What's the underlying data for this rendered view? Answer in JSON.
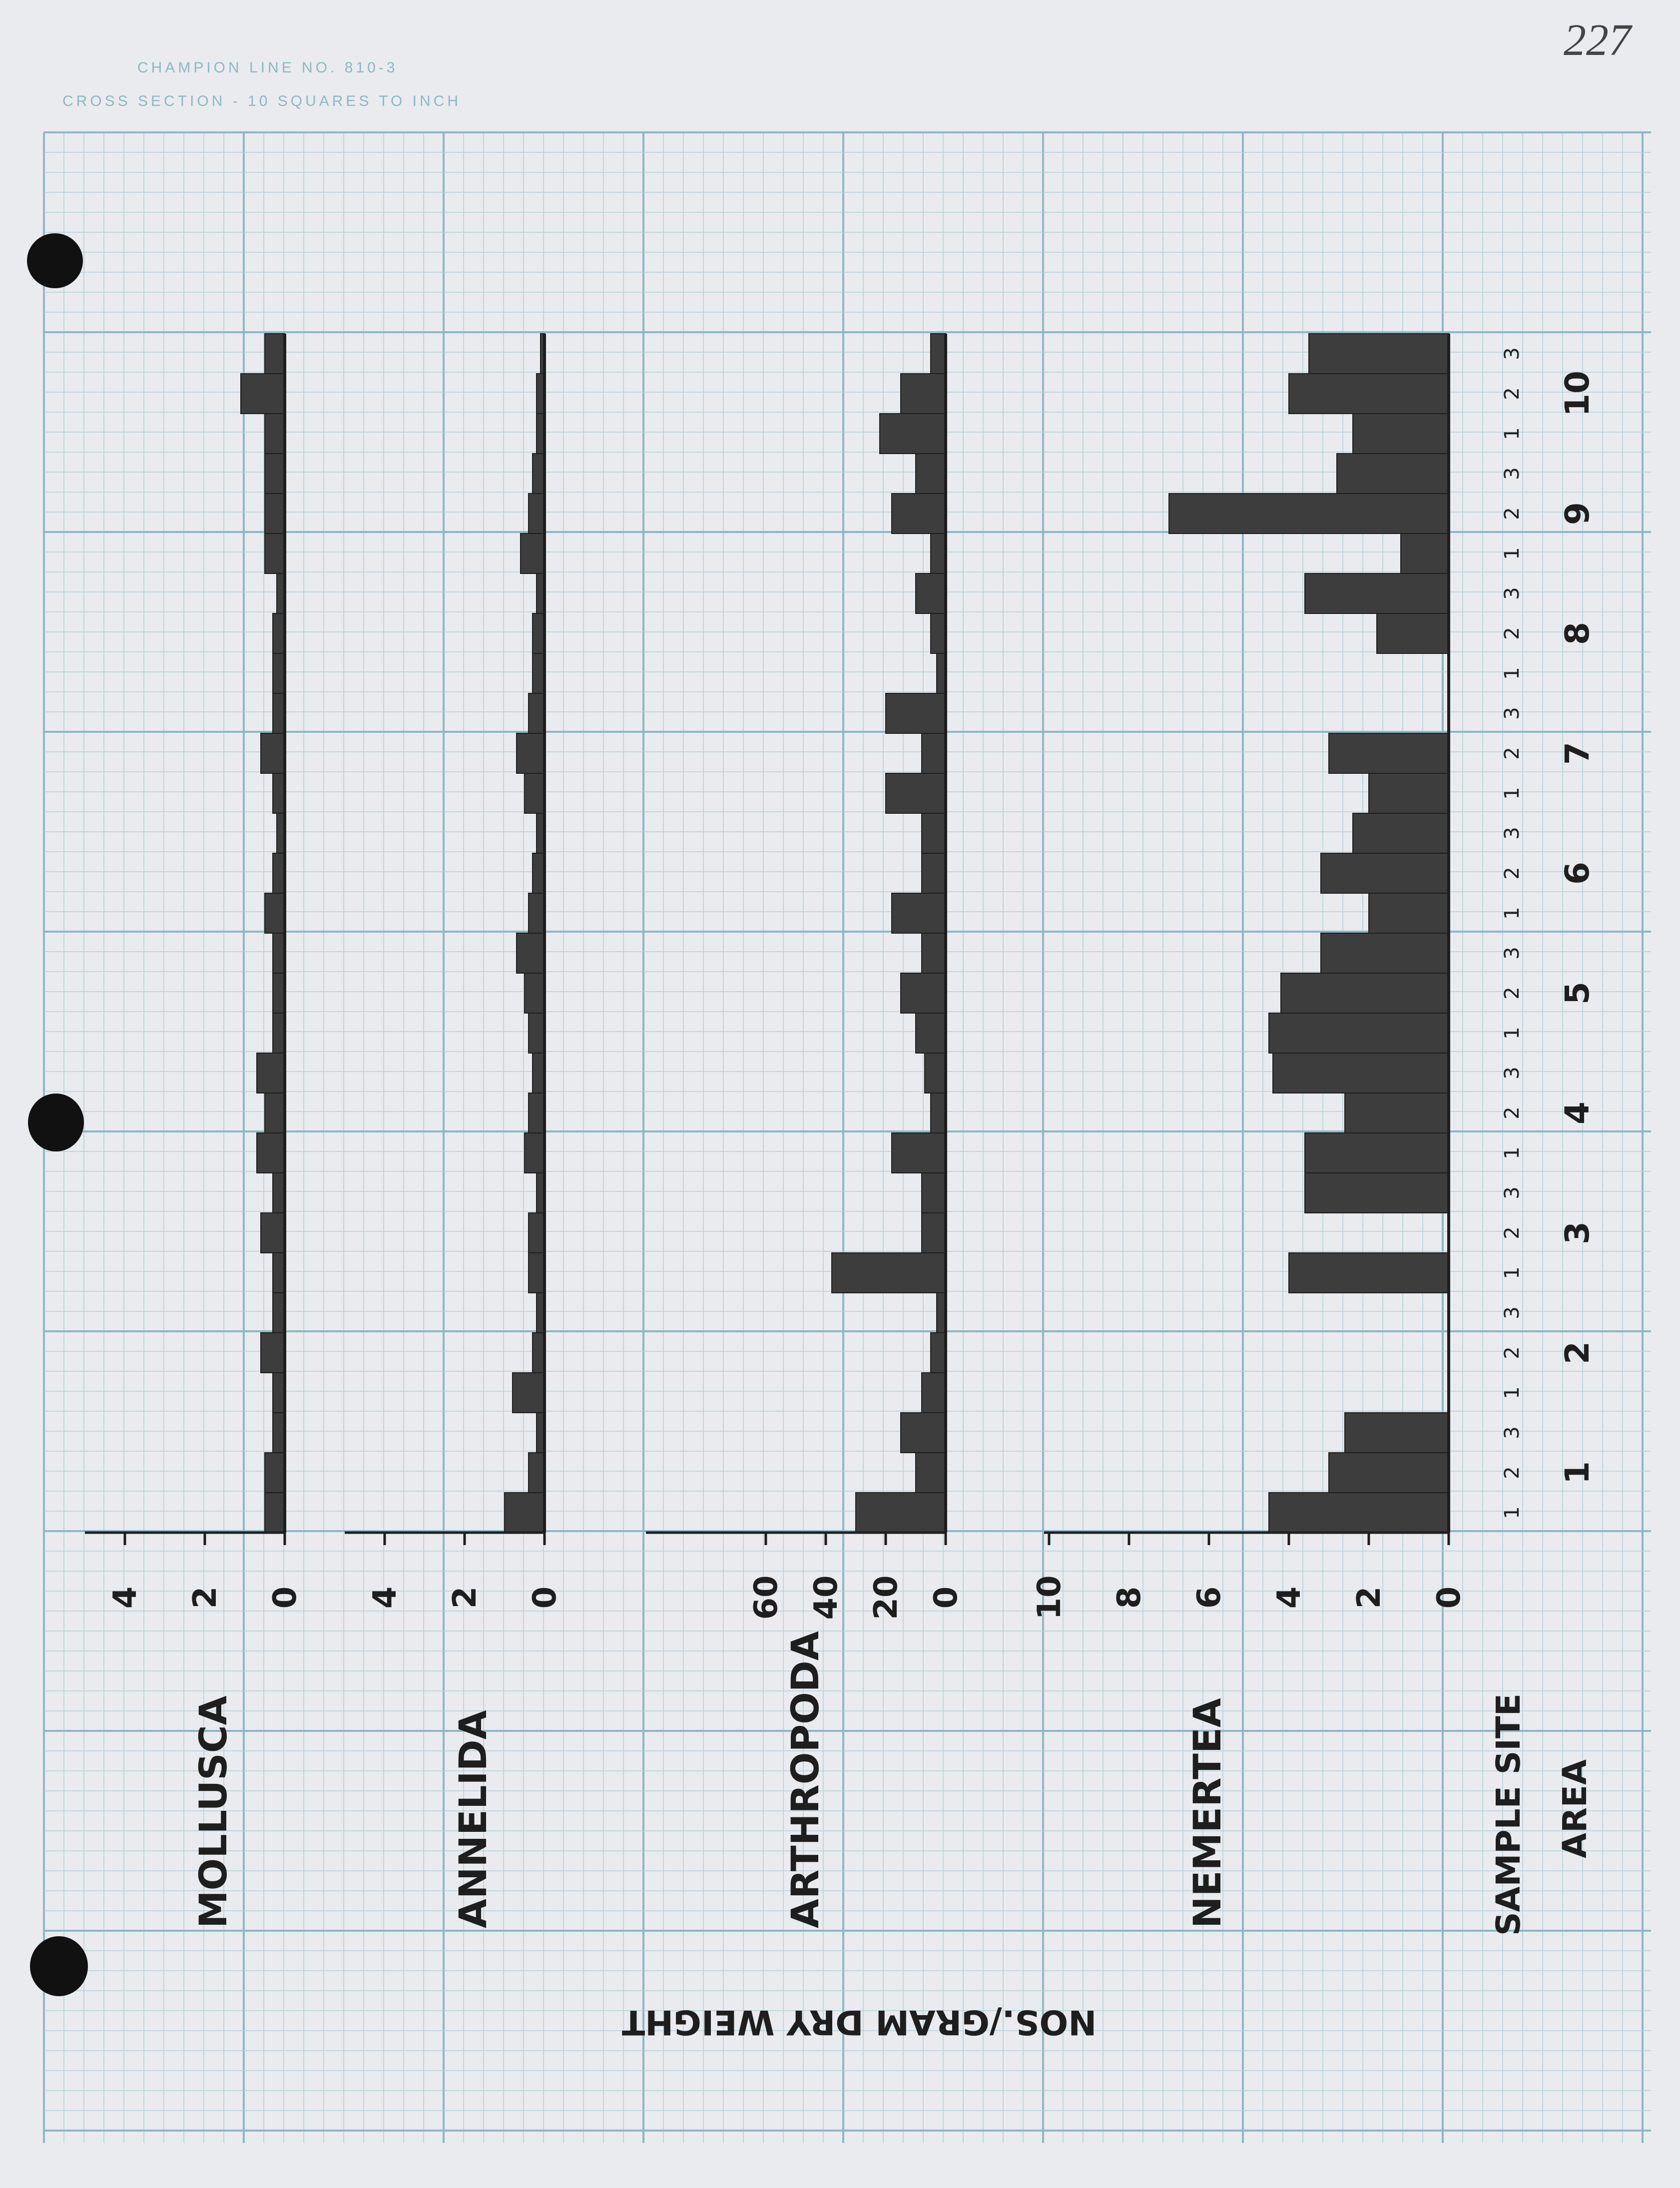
{
  "page": {
    "paper_header_line1": "CHAMPION LINE NO. 810-3",
    "paper_header_line2": "CROSS SECTION - 10 SQUARES TO INCH",
    "page_number": "227"
  },
  "colors": {
    "paper": "#e9ebee",
    "grid_minor": "#b7d0d8",
    "grid_major": "#8fb7c4",
    "ink": "#1e1e1e",
    "bar_fill": "#3d3d3d"
  },
  "chart_data": {
    "type": "bar",
    "orientation": "rotated 90 degrees",
    "ylabel": "NOS./GRAM DRY WEIGHT",
    "xlabel_rows": [
      "SAMPLE SITE",
      "AREA"
    ],
    "x_areas": [
      "1",
      "2",
      "3",
      "4",
      "5",
      "6",
      "7",
      "8",
      "9",
      "10"
    ],
    "x_sites": [
      "1",
      "2",
      "3",
      "1",
      "2",
      "3",
      "1",
      "2",
      "3",
      "1",
      "2",
      "3",
      "1",
      "2",
      "3",
      "1",
      "2",
      "3",
      "1",
      "2",
      "3",
      "1",
      "2",
      "3",
      "1",
      "2",
      "3",
      "1",
      "2",
      "3"
    ],
    "panels": [
      {
        "name": "MOLLUSCA",
        "ylim": [
          0,
          5
        ],
        "yticks": [
          "0",
          "2",
          "4"
        ],
        "values": [
          0.5,
          0.5,
          0.3,
          0.3,
          0.6,
          0.3,
          0.3,
          0.6,
          0.3,
          0.7,
          0.5,
          0.7,
          0.3,
          0.3,
          0.3,
          0.5,
          0.3,
          0.2,
          0.3,
          0.6,
          0.3,
          0.3,
          0.3,
          0.2,
          0.5,
          0.5,
          0.5,
          0.5,
          1.1,
          0.5
        ]
      },
      {
        "name": "ANNELIDA",
        "ylim": [
          0,
          5
        ],
        "yticks": [
          "0",
          "2",
          "4"
        ],
        "values": [
          1.0,
          0.4,
          0.2,
          0.8,
          0.3,
          0.2,
          0.4,
          0.4,
          0.2,
          0.5,
          0.4,
          0.3,
          0.4,
          0.5,
          0.7,
          0.4,
          0.3,
          0.2,
          0.5,
          0.7,
          0.4,
          0.3,
          0.3,
          0.2,
          0.6,
          0.4,
          0.3,
          0.2,
          0.2,
          0.1
        ]
      },
      {
        "name": "ARTHROPODA",
        "ylim": [
          0,
          75
        ],
        "yticks": [
          "0",
          "20",
          "40",
          "60"
        ],
        "values": [
          30,
          10,
          15,
          8,
          5,
          3,
          38,
          8,
          8,
          18,
          5,
          7,
          10,
          15,
          8,
          18,
          8,
          8,
          20,
          8,
          20,
          3,
          5,
          10,
          5,
          18,
          10,
          22,
          15,
          5
        ]
      },
      {
        "name": "NEMERTEA",
        "ylim": [
          0,
          10
        ],
        "yticks": [
          "0",
          "2",
          "4",
          "6",
          "8",
          "10"
        ],
        "values": [
          4.5,
          3.0,
          2.6,
          0,
          0,
          0,
          4.0,
          0,
          3.6,
          3.6,
          2.6,
          4.4,
          4.5,
          4.2,
          3.2,
          2.0,
          3.2,
          2.4,
          2.0,
          3.0,
          null,
          null,
          1.8,
          3.6,
          1.2,
          7.0,
          2.8,
          2.4,
          4.0,
          3.5
        ]
      }
    ]
  }
}
